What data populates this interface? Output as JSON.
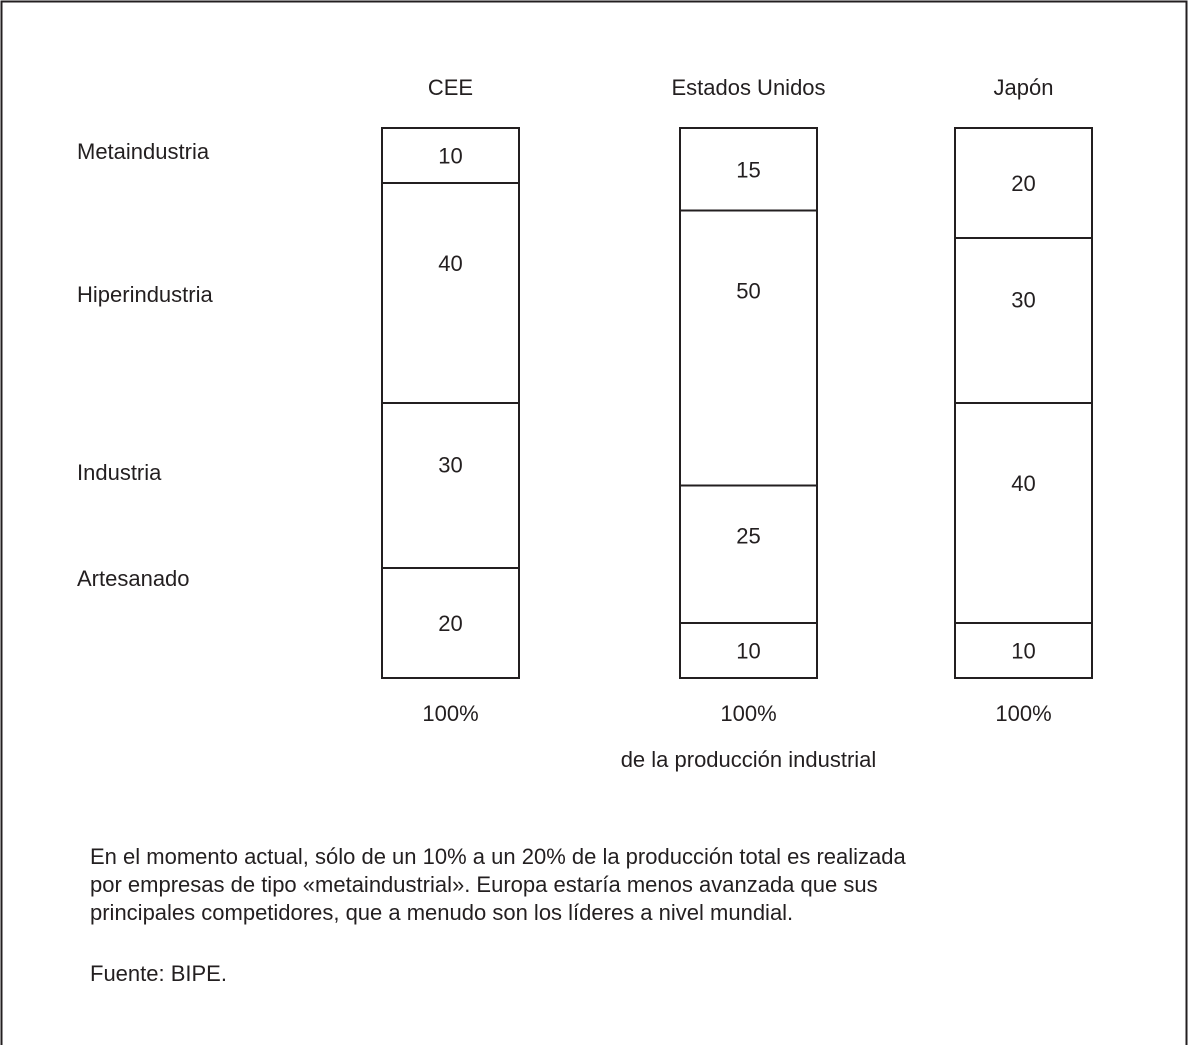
{
  "chart_data": {
    "type": "bar",
    "stacked": true,
    "columns": [
      "CEE",
      "Estados Unidos",
      "Japón"
    ],
    "row_labels": [
      "Metaindustria",
      "Hiperindustria",
      "Industria",
      "Artesanado"
    ],
    "series": [
      {
        "name": "Metaindustria",
        "values": [
          10,
          15,
          20
        ]
      },
      {
        "name": "Hiperindustria",
        "values": [
          40,
          50,
          30
        ]
      },
      {
        "name": "Industria",
        "values": [
          30,
          25,
          40
        ]
      },
      {
        "name": "Artesanado",
        "values": [
          20,
          10,
          10
        ]
      }
    ],
    "totals": [
      "100%",
      "100%",
      "100%"
    ],
    "xlabel": "de la producción industrial",
    "ylim": [
      0,
      100
    ]
  },
  "note": {
    "lines": [
      "En el momento actual, sólo de un 10% a un 20% de la producción total es realizada",
      "por empresas de tipo «metaindustrial». Europa estaría menos avanzada que sus",
      "principales competidores, que a menudo son los líderes a nivel mundial."
    ],
    "source": "Fuente: BIPE."
  }
}
